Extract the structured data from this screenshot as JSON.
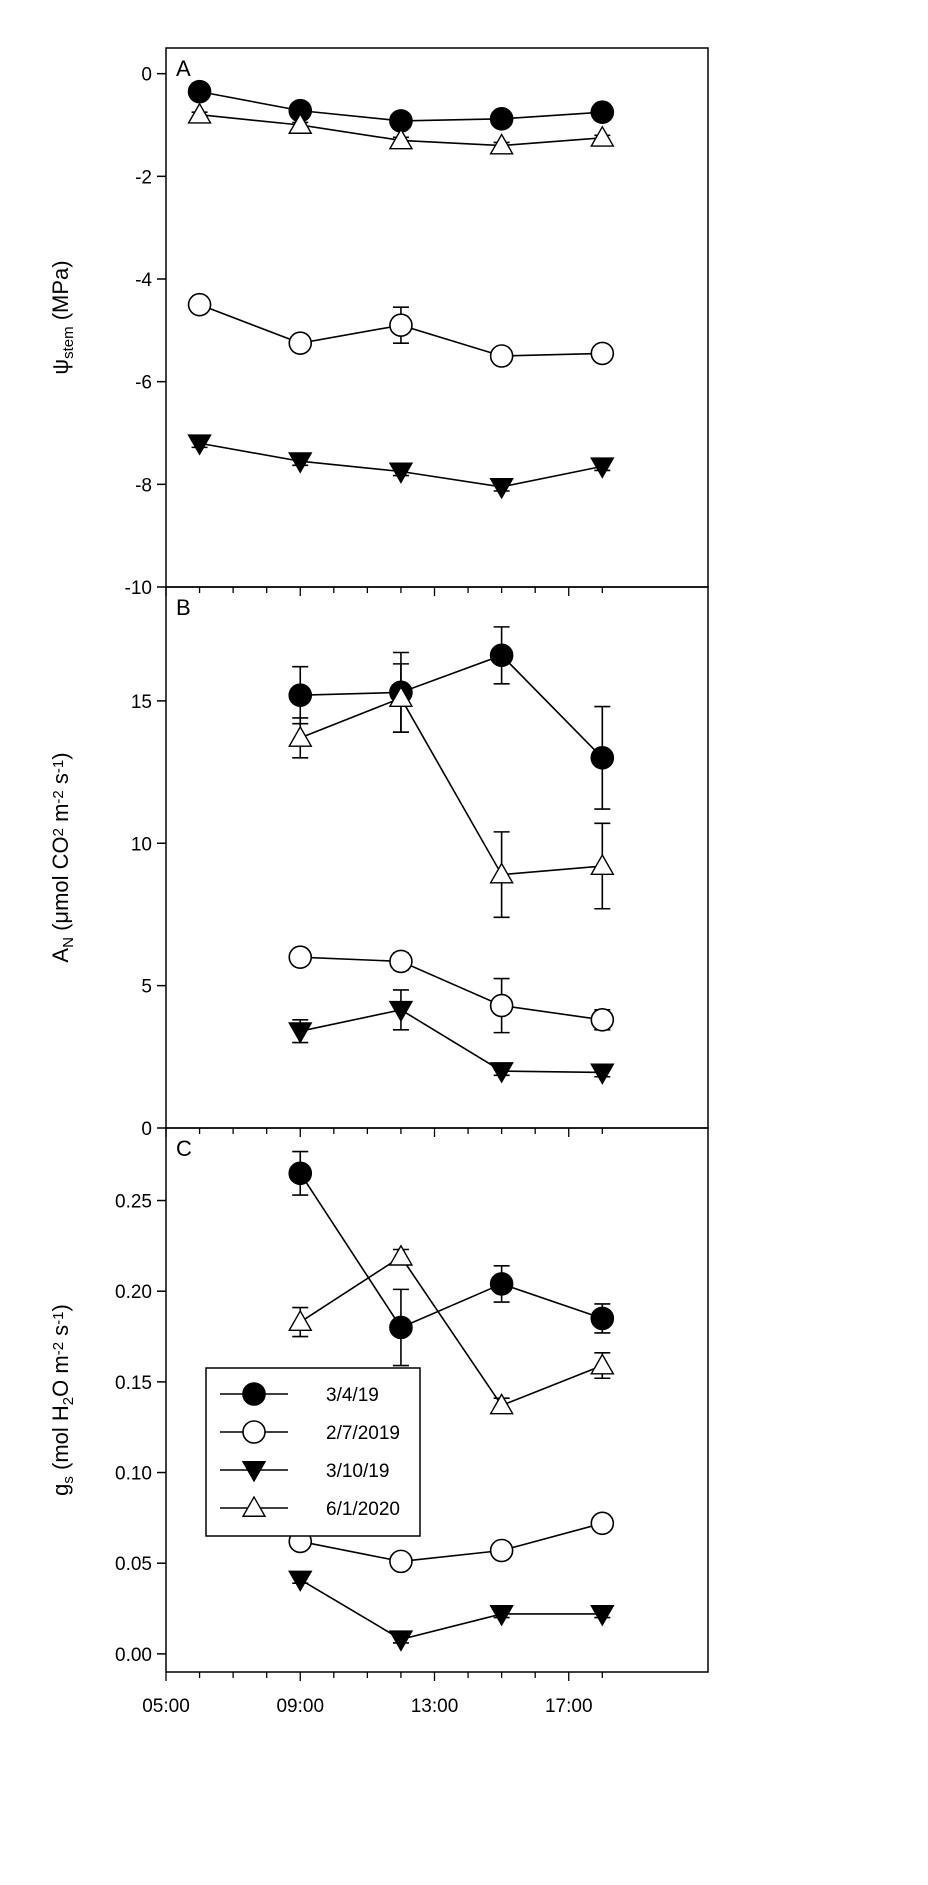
{
  "chart_data": [
    {
      "type": "line",
      "panel_label": "A",
      "ylabel": {
        "main": "ψ",
        "sub": "stem",
        "tail": " (MPa)"
      },
      "x": [
        "06:00",
        "09:00",
        "12:00",
        "15:00",
        "18:00"
      ],
      "ylim": [
        -10,
        0.5
      ],
      "yticks": [
        0,
        -2,
        -4,
        -6,
        -8,
        -10
      ],
      "ytick_labels": [
        "0",
        "-2",
        "-4",
        "-6",
        "-8",
        "-10"
      ],
      "series": [
        {
          "name": "3/4/19",
          "marker": "circle-filled",
          "values": [
            -0.35,
            -0.72,
            -0.92,
            -0.88,
            -0.75
          ],
          "errors": [
            0.05,
            0.05,
            0.06,
            0.06,
            0.05
          ]
        },
        {
          "name": "6/1/2020",
          "marker": "triangle-open",
          "values": [
            -0.8,
            -1.0,
            -1.3,
            -1.4,
            -1.25
          ],
          "errors": [
            0.05,
            0.05,
            0.06,
            0.06,
            0.05
          ]
        },
        {
          "name": "2/7/2019",
          "marker": "circle-open",
          "values": [
            -4.5,
            -5.25,
            -4.9,
            -5.5,
            -5.45
          ],
          "errors": [
            0.06,
            0.06,
            0.35,
            0.06,
            0.06
          ]
        },
        {
          "name": "3/10/19",
          "marker": "triangle-filled",
          "values": [
            -7.2,
            -7.55,
            -7.75,
            -8.05,
            -7.65
          ],
          "errors": [
            0.08,
            0.08,
            0.08,
            0.08,
            0.08
          ]
        }
      ]
    },
    {
      "type": "line",
      "panel_label": "B",
      "ylabel": {
        "main": "A",
        "sub": "N",
        "tail": " (μmol CO",
        "sup1": "2",
        "tail2": " m",
        "sup2": "-2",
        "tail3": " s",
        "sup3": "-1",
        "tail4": ")"
      },
      "x": [
        "09:00",
        "12:00",
        "15:00",
        "18:00"
      ],
      "ylim": [
        0,
        19
      ],
      "yticks": [
        0,
        5,
        10,
        15
      ],
      "ytick_labels": [
        "0",
        "5",
        "10",
        "15"
      ],
      "series": [
        {
          "name": "3/4/19",
          "marker": "circle-filled",
          "values": [
            15.2,
            15.3,
            16.6,
            13.0
          ],
          "errors": [
            1.0,
            1.4,
            1.0,
            1.8
          ]
        },
        {
          "name": "6/1/2020",
          "marker": "triangle-open",
          "values": [
            13.7,
            15.1,
            8.9,
            9.2
          ],
          "errors": [
            0.7,
            1.2,
            1.5,
            1.5
          ]
        },
        {
          "name": "2/7/2019",
          "marker": "circle-open",
          "values": [
            6.0,
            5.85,
            4.3,
            3.8
          ],
          "errors": [
            0.12,
            0.3,
            0.95,
            0.35
          ]
        },
        {
          "name": "3/10/19",
          "marker": "triangle-filled",
          "values": [
            3.4,
            4.15,
            2.0,
            1.95
          ],
          "errors": [
            0.4,
            0.7,
            0.15,
            0.15
          ]
        }
      ]
    },
    {
      "type": "line",
      "panel_label": "C",
      "ylabel": {
        "main": "g",
        "sub": "s",
        "tail": "  (mol H",
        "sub2": "2",
        "tail2": "O m",
        "sup2": "-2",
        "tail3": " s",
        "sup3": "-1",
        "tail4": ")"
      },
      "x": [
        "09:00",
        "12:00",
        "15:00",
        "18:00"
      ],
      "xticks": [
        "05:00",
        "09:00",
        "13:00",
        "17:00"
      ],
      "ylim": [
        -0.01,
        0.29
      ],
      "yticks": [
        0.0,
        0.05,
        0.1,
        0.15,
        0.2,
        0.25
      ],
      "ytick_labels": [
        "0.00",
        "0.05",
        "0.10",
        "0.15",
        "0.20",
        "0.25"
      ],
      "series": [
        {
          "name": "3/4/19",
          "marker": "circle-filled",
          "values": [
            0.265,
            0.18,
            0.204,
            0.185
          ],
          "errors": [
            0.012,
            0.021,
            0.01,
            0.008
          ]
        },
        {
          "name": "6/1/2020",
          "marker": "triangle-open",
          "values": [
            0.183,
            0.219,
            0.137,
            0.159
          ],
          "errors": [
            0.008,
            0.004,
            0.004,
            0.007
          ]
        },
        {
          "name": "2/7/2019",
          "marker": "circle-open",
          "values": [
            0.062,
            0.051,
            0.057,
            0.072
          ],
          "errors": [
            0.002,
            0.002,
            0.002,
            0.002
          ]
        },
        {
          "name": "3/10/19",
          "marker": "triangle-filled",
          "values": [
            0.041,
            0.008,
            0.022,
            0.022
          ],
          "errors": [
            0.002,
            0.002,
            0.002,
            0.002
          ]
        }
      ]
    }
  ],
  "legend": {
    "location": "lower-left of panel C",
    "entries": [
      {
        "label": "3/4/19",
        "marker": "circle-filled"
      },
      {
        "label": "2/7/2019",
        "marker": "circle-open"
      },
      {
        "label": "3/10/19",
        "marker": "triangle-filled"
      },
      {
        "label": "6/1/2020",
        "marker": "triangle-open"
      }
    ]
  },
  "x_axis_tick_labels": [
    "05:00",
    "09:00",
    "13:00",
    "17:00"
  ],
  "colors": {
    "line": "#000000",
    "marker_fill": "#000000",
    "open_fill": "#ffffff",
    "background": "#ffffff"
  }
}
